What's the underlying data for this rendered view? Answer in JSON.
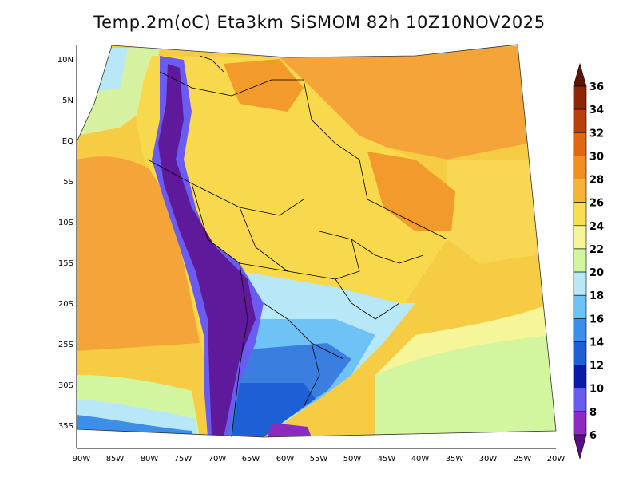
{
  "title": "Temp.2m(oC) Eta3km SiSMOM 82h 10Z10NOV2025",
  "latitude_ticks": [
    "10N",
    "5N",
    "EQ",
    "5S",
    "10S",
    "15S",
    "20S",
    "25S",
    "30S",
    "35S"
  ],
  "longitude_ticks": [
    "90W",
    "85W",
    "80W",
    "75W",
    "70W",
    "65W",
    "60W",
    "55W",
    "50W",
    "45W",
    "40W",
    "35W",
    "30W",
    "25W",
    "20W"
  ],
  "colorbar": {
    "levels": [
      "6",
      "8",
      "10",
      "12",
      "14",
      "16",
      "18",
      "20",
      "22",
      "24",
      "26",
      "28",
      "30",
      "32",
      "34",
      "36"
    ],
    "colors": [
      "#5a0f80",
      "#8c2cbe",
      "#6a5cf0",
      "#0a1aa8",
      "#1f5fd6",
      "#3d8ee8",
      "#6ec2f5",
      "#b8e8f8",
      "#d2f5a0",
      "#f5f59a",
      "#f8de50",
      "#f5b435",
      "#f0901f",
      "#e06814",
      "#b8400a",
      "#8c2506",
      "#5e1604"
    ]
  },
  "palette": {
    "ocean_warm": "#f5a23a",
    "ocean_mid": "#f7d754",
    "land_warm": "#f8d84c",
    "land_hot": "#f29a2c",
    "south_cool": "#3a7fe0",
    "andes": "#5e1a9a"
  }
}
